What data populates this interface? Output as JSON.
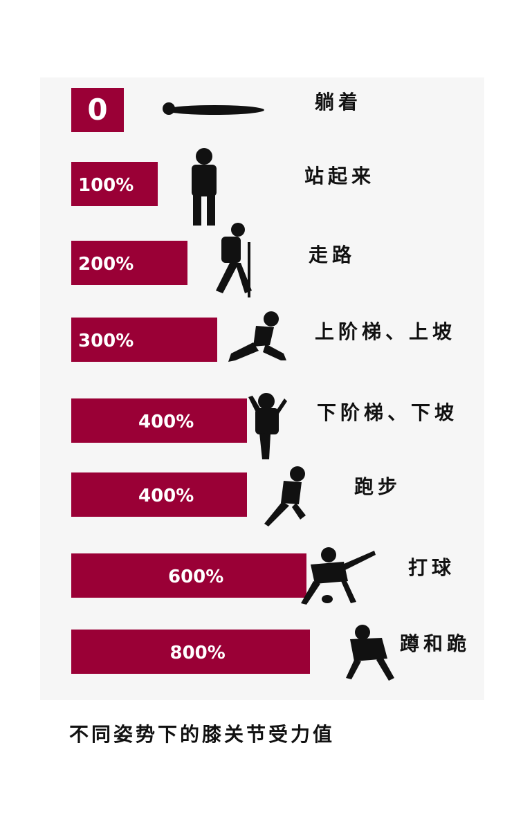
{
  "chart_data": {
    "type": "bar",
    "categories": [
      "躺着",
      "站起来",
      "走路",
      "上阶梯、上坡",
      "下阶梯、下坡",
      "跑步",
      "打球",
      "蹲和跪"
    ],
    "values": [
      0,
      100,
      200,
      300,
      400,
      400,
      600,
      800
    ],
    "value_labels": [
      "0",
      "100%",
      "200%",
      "300%",
      "400%",
      "400%",
      "600%",
      "800%"
    ],
    "title": "不同姿势下的膝关节受力值",
    "bar_color": "#9a0036",
    "label_color": "#ffffff",
    "text_color": "#111111"
  },
  "figures": [
    "lying-figure-icon",
    "standing-figure-icon",
    "walking-figure-icon",
    "climbing-up-figure-icon",
    "descending-figure-icon",
    "running-figure-icon",
    "playing-ball-figure-icon",
    "squatting-figure-icon"
  ]
}
